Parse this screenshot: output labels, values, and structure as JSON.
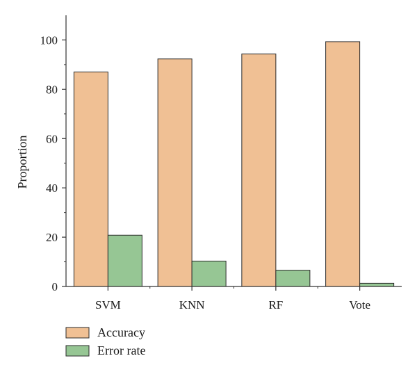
{
  "chart_data": {
    "type": "bar",
    "categories": [
      "SVM",
      "KNN",
      "RF",
      "Vote"
    ],
    "series": [
      {
        "name": "Accuracy",
        "values": [
          87,
          92.3,
          94.3,
          99.3
        ],
        "color": "#f0c094"
      },
      {
        "name": "Error rate",
        "values": [
          20.8,
          10.3,
          6.6,
          1.3
        ],
        "color": "#96c694"
      }
    ],
    "title": "",
    "xlabel": "",
    "ylabel": "Proportion",
    "ylim": [
      0,
      110
    ],
    "yticks": [
      0,
      20,
      40,
      60,
      80,
      100
    ],
    "grid": false,
    "legend_position": "bottom-left"
  }
}
